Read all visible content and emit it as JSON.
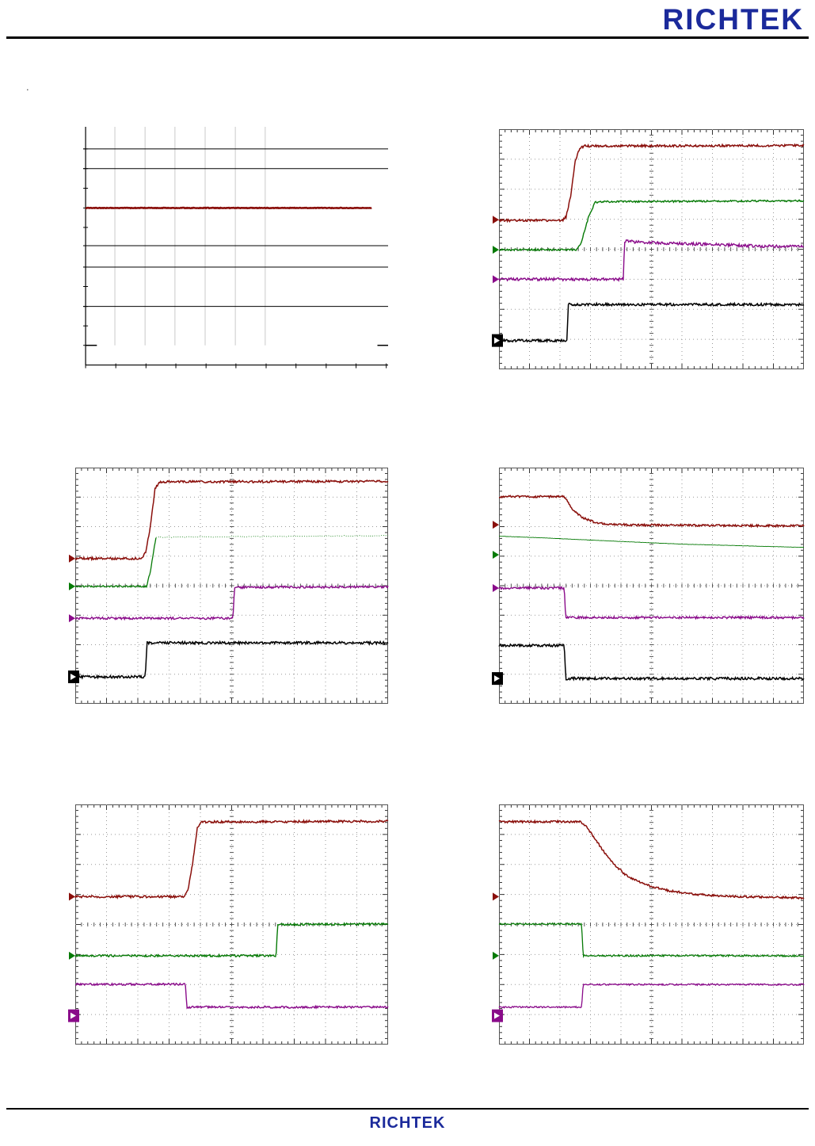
{
  "page": {
    "header_logo": "RICHTEK",
    "footer_logo": "RICHTEK",
    "stray_dot": ".",
    "brand_color": "#1b2a9b"
  },
  "chart_data": {
    "type": "line",
    "title": "Oscilloscope waveform capture panels (6 plots, no visible axis text)",
    "legend_position": "none",
    "grid": "dotted scope graticule 10x8 divisions",
    "colors": {
      "trace_red": "#8a0f0b",
      "trace_green": "#067a06",
      "trace_purple": "#8a0b8a",
      "trace_black": "#000000"
    },
    "plots": [
      {
        "name": "top-left-flat-line-plot",
        "frame": "axes",
        "vgrid": [
          10.4,
          20.3,
          30.1,
          40,
          49.9,
          59.7
        ],
        "vgrid_bottom": 91,
        "hlines": [
          9.2,
          17.4,
          49.5,
          58.4,
          74.8
        ],
        "axis": {
          "x": 0.8,
          "y": 99.2,
          "xticks": [
            0.8,
            10.7,
            20.6,
            30.4,
            40.3,
            50.1,
            60,
            69.8,
            79.7,
            89.5,
            99.4
          ],
          "yticks": [
            9.2,
            17.4,
            25.6,
            33.8,
            41.9,
            49.5,
            58.4,
            66.5,
            74.8,
            82.9,
            91
          ],
          "marks": [
            {
              "x1": 0.8,
              "x2": 4.5,
              "y": 91
            },
            {
              "x1": 96.5,
              "x2": 100,
              "y": 91
            }
          ]
        },
        "traces": [
          {
            "color": "#8a0f0b",
            "width": 2.6,
            "noise": 0.35,
            "pts": [
              [
                0.8,
                33.8
              ],
              [
                94.6,
                33.8
              ]
            ]
          }
        ],
        "markers": []
      },
      {
        "name": "top-right-startup-rise",
        "frame": "scope",
        "traces": [
          {
            "color": "#8a0f0b",
            "width": 1.5,
            "noise": 1.4,
            "pts": [
              [
                0,
                38
              ],
              [
                20.8,
                38
              ],
              [
                22,
                36.5
              ],
              [
                23.5,
                28
              ],
              [
                25,
                13
              ],
              [
                26.5,
                8
              ],
              [
                28,
                7
              ],
              [
                100,
                6.8
              ]
            ]
          },
          {
            "color": "#067a06",
            "width": 1.4,
            "noise": 1.1,
            "pts": [
              [
                0,
                50.2
              ],
              [
                25.5,
                50.2
              ],
              [
                27,
                47
              ],
              [
                29.5,
                36
              ],
              [
                31.5,
                30.5
              ],
              [
                33,
                30.2
              ],
              [
                100,
                29.8
              ]
            ]
          },
          {
            "color": "#8a0b8a",
            "width": 1.4,
            "noise": 1.8,
            "pts": [
              [
                0,
                62.5
              ],
              [
                40.8,
                62.5
              ],
              [
                41.2,
                46.5
              ],
              [
                45,
                47
              ],
              [
                55,
                47.5
              ],
              [
                70,
                48
              ],
              [
                85,
                48.7
              ],
              [
                100,
                48.9
              ]
            ]
          },
          {
            "color": "#000000",
            "width": 1.5,
            "noise": 1.6,
            "pts": [
              [
                0,
                88
              ],
              [
                22.3,
                88
              ],
              [
                22.7,
                73
              ],
              [
                100,
                73
              ]
            ]
          }
        ],
        "markers": [
          {
            "name": "ch1-marker",
            "color": "#8a0f0b",
            "y": 37.7
          },
          {
            "name": "ch2-marker",
            "color": "#067a06",
            "y": 50.2
          },
          {
            "name": "ch3-marker",
            "color": "#8a0b8a",
            "y": 62.5
          },
          {
            "name": "ch4-trigger-marker",
            "color": "#000000",
            "y": 88,
            "trigger": true
          }
        ]
      },
      {
        "name": "middle-left-power-on",
        "frame": "scope",
        "traces": [
          {
            "color": "#8a0f0b",
            "width": 1.5,
            "noise": 1.4,
            "pts": [
              [
                0,
                38.5
              ],
              [
                21,
                38.5
              ],
              [
                22.5,
                36
              ],
              [
                24,
                25
              ],
              [
                25.5,
                9
              ],
              [
                27,
                6
              ],
              [
                100,
                5.8
              ]
            ]
          },
          {
            "color": "#067a06",
            "width": 1.3,
            "noise": 1.0,
            "pts": [
              [
                0,
                50.3
              ],
              [
                22.8,
                50.3
              ],
              [
                24,
                44
              ],
              [
                25.8,
                29.5
              ]
            ]
          },
          {
            "color": "#067a06",
            "width": 0.8,
            "noise": 0.5,
            "dash": "1 2",
            "pts": [
              [
                25.8,
                29.5
              ],
              [
                100,
                28.8
              ]
            ]
          },
          {
            "color": "#8a0b8a",
            "width": 1.4,
            "noise": 1.4,
            "pts": [
              [
                0,
                63.8
              ],
              [
                50.4,
                63.8
              ],
              [
                50.9,
                50.7
              ],
              [
                100,
                50.5
              ]
            ]
          },
          {
            "color": "#000000",
            "width": 1.5,
            "noise": 1.6,
            "pts": [
              [
                0,
                88.6
              ],
              [
                22.4,
                88.6
              ],
              [
                22.9,
                74.2
              ],
              [
                100,
                74.2
              ]
            ]
          }
        ],
        "markers": [
          {
            "name": "ch1-marker",
            "color": "#8a0f0b",
            "y": 38.5
          },
          {
            "name": "ch2-marker",
            "color": "#067a06",
            "y": 50.3
          },
          {
            "name": "ch3-marker",
            "color": "#8a0b8a",
            "y": 63.8
          },
          {
            "name": "ch4-trigger-marker",
            "color": "#000000",
            "y": 88.6,
            "trigger": true
          }
        ]
      },
      {
        "name": "middle-right-power-off-decay",
        "frame": "scope",
        "traces": [
          {
            "color": "#8a0f0b",
            "width": 1.5,
            "noise": 1.3,
            "pts": [
              [
                0,
                12.3
              ],
              [
                21.2,
                12.3
              ],
              [
                22,
                13.5
              ],
              [
                24,
                17.5
              ],
              [
                27,
                21
              ],
              [
                31,
                23
              ],
              [
                36,
                24
              ],
              [
                45,
                24.3
              ],
              [
                100,
                24.7
              ]
            ]
          },
          {
            "color": "#067a06",
            "width": 0.9,
            "noise": 0.2,
            "pts": [
              [
                0,
                29
              ],
              [
                15,
                29.8
              ],
              [
                35,
                31
              ],
              [
                60,
                32.4
              ],
              [
                100,
                33.8
              ]
            ]
          },
          {
            "color": "#8a0b8a",
            "width": 1.4,
            "noise": 1.4,
            "pts": [
              [
                0,
                51
              ],
              [
                21.4,
                51
              ],
              [
                21.9,
                63.5
              ],
              [
                100,
                63.5
              ]
            ]
          },
          {
            "color": "#000000",
            "width": 1.5,
            "noise": 1.6,
            "pts": [
              [
                0,
                75.3
              ],
              [
                21.4,
                75.3
              ],
              [
                21.9,
                89.3
              ],
              [
                100,
                89.3
              ]
            ]
          }
        ],
        "markers": [
          {
            "name": "ch1-marker",
            "color": "#8a0f0b",
            "y": 24.2
          },
          {
            "name": "ch2-marker",
            "color": "#067a06",
            "y": 36.9
          },
          {
            "name": "ch3-marker",
            "color": "#8a0b8a",
            "y": 51
          },
          {
            "name": "ch4-trigger-marker",
            "color": "#000000",
            "y": 89.3,
            "trigger": true
          }
        ]
      },
      {
        "name": "bottom-left-enable-rise",
        "frame": "scope",
        "traces": [
          {
            "color": "#8a0f0b",
            "width": 1.5,
            "noise": 1.4,
            "pts": [
              [
                0,
                38.4
              ],
              [
                34.5,
                38.4
              ],
              [
                36,
                36
              ],
              [
                37.5,
                25
              ],
              [
                39,
                9.5
              ],
              [
                40.5,
                7.3
              ],
              [
                100,
                7
              ]
            ]
          },
          {
            "color": "#067a06",
            "width": 1.4,
            "noise": 1.3,
            "pts": [
              [
                0,
                63
              ],
              [
                64.2,
                63
              ],
              [
                64.7,
                50
              ],
              [
                100,
                49.8
              ]
            ]
          },
          {
            "color": "#8a0b8a",
            "width": 1.4,
            "noise": 1.3,
            "pts": [
              [
                0,
                74.9
              ],
              [
                35.2,
                74.9
              ],
              [
                35.7,
                84.4
              ],
              [
                100,
                84.4
              ]
            ]
          }
        ],
        "markers": [
          {
            "name": "ch1-marker",
            "color": "#8a0f0b",
            "y": 38.4
          },
          {
            "name": "ch2-marker",
            "color": "#067a06",
            "y": 63
          },
          {
            "name": "ch3-trigger-marker",
            "color": "#8a0b8a",
            "y": 88,
            "trigger": true
          }
        ]
      },
      {
        "name": "bottom-right-disable-decay",
        "frame": "scope",
        "traces": [
          {
            "color": "#8a0f0b",
            "width": 1.5,
            "noise": 1.3,
            "pts": [
              [
                0,
                7.2
              ],
              [
                26.8,
                7.2
              ],
              [
                28.5,
                9
              ],
              [
                31,
                13.5
              ],
              [
                34,
                19
              ],
              [
                37.5,
                24.5
              ],
              [
                41,
                28.8
              ],
              [
                45,
                31.8
              ],
              [
                50,
                34.2
              ],
              [
                56,
                36
              ],
              [
                64,
                37.4
              ],
              [
                75,
                38.3
              ],
              [
                100,
                38.9
              ]
            ]
          },
          {
            "color": "#067a06",
            "width": 1.3,
            "noise": 1.1,
            "pts": [
              [
                0,
                49.8
              ],
              [
                27.1,
                49.8
              ],
              [
                27.6,
                63
              ],
              [
                100,
                63
              ]
            ]
          },
          {
            "color": "#8a0b8a",
            "width": 1.3,
            "noise": 1.0,
            "pts": [
              [
                0,
                84.4
              ],
              [
                27.1,
                84.4
              ],
              [
                27.6,
                75
              ],
              [
                100,
                75
              ]
            ]
          }
        ],
        "markers": [
          {
            "name": "ch1-marker",
            "color": "#8a0f0b",
            "y": 38.4
          },
          {
            "name": "ch2-marker",
            "color": "#067a06",
            "y": 63
          },
          {
            "name": "ch3-trigger-marker",
            "color": "#8a0b8a",
            "y": 88,
            "trigger": true
          }
        ]
      }
    ]
  }
}
